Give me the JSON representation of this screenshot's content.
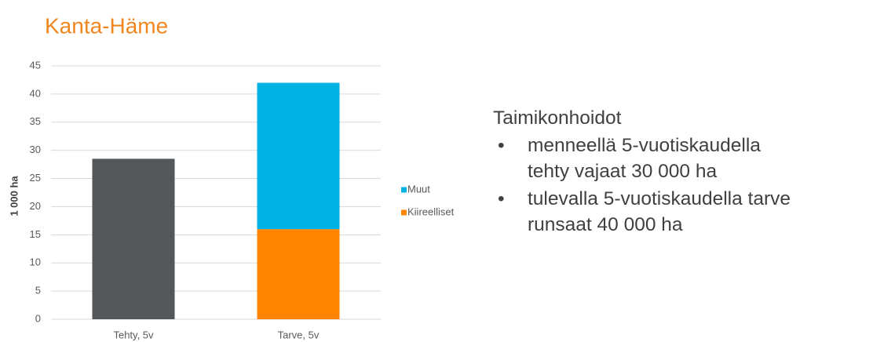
{
  "chart_data": {
    "type": "stacked_bar",
    "title": "Kanta-Häme",
    "y_label": "1 000 ha",
    "categories": [
      "Tehty, 5v",
      "Tarve, 5v"
    ],
    "series": [
      {
        "color": "#54575a",
        "values": [
          28.5,
          null
        ]
      },
      {
        "name": "Kiireelliset",
        "color": "#ff8400",
        "values": [
          null,
          16
        ]
      },
      {
        "name": "Muut",
        "color": "#00b2e3",
        "values": [
          null,
          26
        ]
      }
    ],
    "ylim": [
      0,
      45
    ],
    "yticks": [
      0,
      5,
      10,
      15,
      20,
      25,
      30,
      35,
      40,
      45
    ],
    "grid": true,
    "legend": "right"
  },
  "text": {
    "heading": "Taimikonhoidot",
    "bullets": [
      [
        "menneellä 5-vuotiskaudella",
        "tehty vajaat 30 000 ha"
      ],
      [
        "tulevalla 5-vuotiskaudella tarve",
        "runsaat 40 000 ha"
      ]
    ]
  }
}
